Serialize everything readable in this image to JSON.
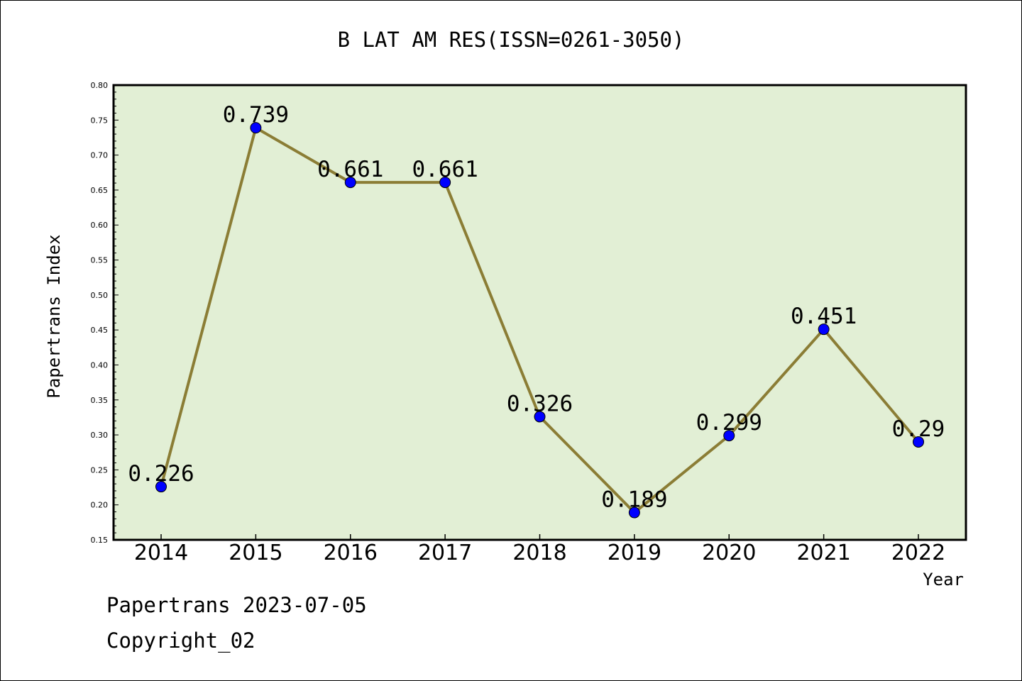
{
  "chart_data": {
    "type": "line",
    "title": "B LAT AM RES(ISSN=0261-3050)",
    "xlabel": "Year",
    "ylabel": "Papertrans Index",
    "x": [
      "2014",
      "2015",
      "2016",
      "2017",
      "2018",
      "2019",
      "2020",
      "2021",
      "2022"
    ],
    "values": [
      0.226,
      0.739,
      0.661,
      0.661,
      0.326,
      0.189,
      0.299,
      0.451,
      0.29
    ],
    "data_labels": [
      "0.226",
      "0.739",
      "0.661",
      "0.661",
      "0.326",
      "0.189",
      "0.299",
      "0.451",
      "0.29"
    ],
    "ylim": [
      0.15,
      0.8
    ],
    "yticks": [
      "0.15",
      "0.20",
      "0.25",
      "0.30",
      "0.35",
      "0.40",
      "0.45",
      "0.50",
      "0.55",
      "0.60",
      "0.65",
      "0.70",
      "0.75",
      "0.80"
    ],
    "grid": false,
    "colors": {
      "plot_background": "#e2efd5",
      "line": "#8b7d35",
      "marker": "#0000ff"
    }
  },
  "footer": {
    "line1": "Papertrans 2023-07-05",
    "line2": "Copyright_02"
  }
}
